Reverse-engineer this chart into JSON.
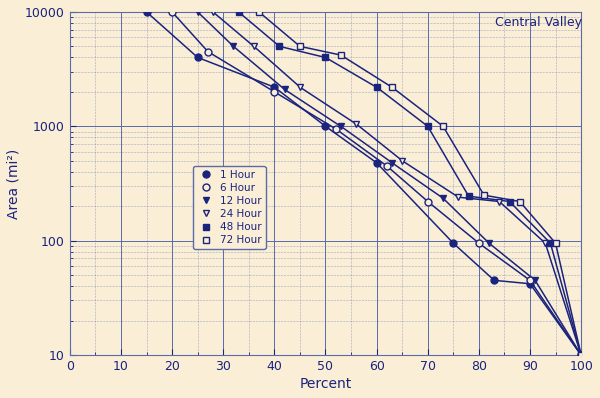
{
  "title": "Central Valley",
  "xlabel": "Percent",
  "ylabel": "Area (mi²)",
  "background_color": "#faefd6",
  "line_color": "#1a237e",
  "xlim": [
    0,
    100
  ],
  "ylim": [
    10,
    10000
  ],
  "xticks": [
    0,
    10,
    20,
    30,
    40,
    50,
    60,
    70,
    80,
    90,
    100
  ],
  "series": [
    {
      "label": "1 Hour",
      "marker": "o",
      "fillstyle": "full",
      "x": [
        15,
        25,
        40,
        50,
        60,
        75,
        83,
        90,
        100
      ],
      "y": [
        10000,
        4000,
        2200,
        1000,
        480,
        95,
        45,
        42,
        10
      ]
    },
    {
      "label": "6 Hour",
      "marker": "o",
      "fillstyle": "none",
      "x": [
        20,
        27,
        40,
        52,
        62,
        70,
        80,
        90,
        100
      ],
      "y": [
        10000,
        4500,
        2000,
        950,
        450,
        220,
        95,
        45,
        10
      ]
    },
    {
      "label": "12 Hour",
      "marker": "v",
      "fillstyle": "full",
      "x": [
        25,
        32,
        42,
        53,
        63,
        73,
        82,
        91,
        100
      ],
      "y": [
        10000,
        5000,
        2100,
        1000,
        480,
        235,
        95,
        45,
        10
      ]
    },
    {
      "label": "24 Hour",
      "marker": "v",
      "fillstyle": "none",
      "x": [
        28,
        36,
        45,
        56,
        65,
        76,
        84,
        93,
        100
      ],
      "y": [
        10000,
        5000,
        2200,
        1050,
        500,
        240,
        220,
        95,
        10
      ]
    },
    {
      "label": "48 Hour",
      "marker": "s",
      "fillstyle": "full",
      "x": [
        33,
        41,
        50,
        60,
        70,
        78,
        86,
        94,
        100
      ],
      "y": [
        10000,
        5000,
        4000,
        2200,
        1000,
        245,
        220,
        95,
        10
      ]
    },
    {
      "label": "72 Hour",
      "marker": "s",
      "fillstyle": "none",
      "x": [
        37,
        45,
        53,
        63,
        73,
        81,
        88,
        95,
        100
      ],
      "y": [
        10000,
        5000,
        4200,
        2200,
        1000,
        250,
        220,
        95,
        10
      ]
    }
  ]
}
